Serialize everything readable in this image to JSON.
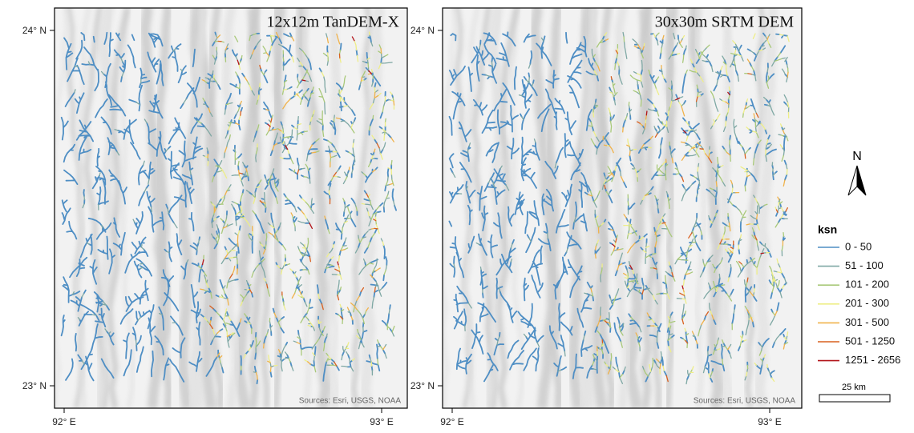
{
  "panels": [
    {
      "title": "12x12m TanDEM-X",
      "lat_labels": [
        "24° N",
        "23° N"
      ],
      "lon_labels": [
        "92° E",
        "93° E"
      ],
      "sources": "Sources: Esri, USGS, NOAA"
    },
    {
      "title": "30x30m SRTM DEM",
      "lat_labels": [
        "24° N",
        "23° N"
      ],
      "lon_labels": [
        "92° E",
        "93° E"
      ],
      "sources": "Sources: Esri, USGS, NOAA"
    }
  ],
  "north_arrow": "N",
  "legend": {
    "title": "ksn",
    "entries": [
      {
        "label": "0 - 50",
        "color": "#4e8ec4"
      },
      {
        "label": "51 - 100",
        "color": "#7fa8a4"
      },
      {
        "label": "101 - 200",
        "color": "#a9c97a"
      },
      {
        "label": "201 - 300",
        "color": "#eeee88"
      },
      {
        "label": "301 - 500",
        "color": "#f0b24a"
      },
      {
        "label": "501 - 1250",
        "color": "#d9601f"
      },
      {
        "label": "1251 - 2656",
        "color": "#b3151a"
      }
    ]
  },
  "scale_bar": "25 km"
}
